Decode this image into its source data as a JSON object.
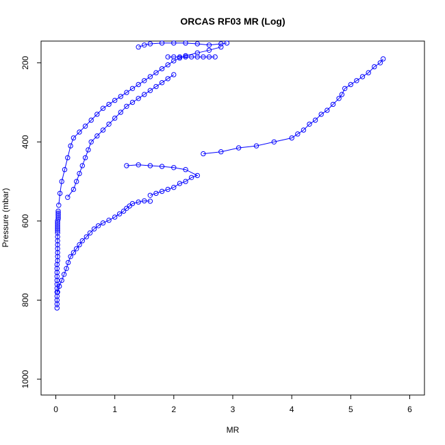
{
  "chart_data": {
    "type": "scatter",
    "title": "ORCAS RF03 MR (Log)",
    "xlabel": "MR",
    "ylabel": "Pressure (mbar)",
    "xlim": [
      -0.25,
      6.25
    ],
    "ylim": [
      1040,
      145
    ],
    "y_reversed": true,
    "grid": false,
    "legend": "none",
    "marker": "open-circle",
    "connected_by_line": true,
    "series_color": "#0000ff",
    "x_ticks": [
      0,
      1,
      2,
      3,
      4,
      5,
      6
    ],
    "x_tick_labels": [
      "0",
      "1",
      "2",
      "3",
      "4",
      "5",
      "6"
    ],
    "y_ticks": [
      200,
      400,
      600,
      800,
      1000
    ],
    "y_tick_labels": [
      "200",
      "400",
      "600",
      "800",
      "1000"
    ],
    "series": [
      {
        "segment": "surface-near-zero",
        "x": [
          0.02,
          0.02,
          0.02,
          0.02,
          0.02,
          0.02,
          0.02,
          0.02,
          0.02,
          0.02,
          0.02,
          0.02,
          0.03,
          0.03,
          0.03,
          0.03,
          0.03,
          0.03,
          0.03,
          0.03,
          0.03,
          0.03,
          0.03,
          0.03,
          0.03,
          0.03,
          0.04,
          0.04,
          0.04,
          0.04,
          0.04
        ],
        "y": [
          820,
          810,
          800,
          790,
          780,
          770,
          760,
          750,
          740,
          730,
          720,
          710,
          700,
          690,
          680,
          670,
          660,
          650,
          640,
          630,
          625,
          620,
          615,
          610,
          605,
          600,
          595,
          590,
          585,
          580,
          575
        ]
      },
      {
        "segment": "moist-layer-profile",
        "x": [
          0.03,
          0.06,
          0.1,
          0.14,
          0.18,
          0.21,
          0.25,
          0.3,
          0.35,
          0.4,
          0.45,
          0.52,
          0.58,
          0.65,
          0.72,
          0.8,
          0.9,
          1.0,
          1.08,
          1.15,
          1.2,
          1.25,
          1.3,
          1.4,
          1.5,
          1.6
        ],
        "y": [
          780,
          765,
          750,
          735,
          720,
          705,
          690,
          680,
          670,
          660,
          650,
          640,
          630,
          620,
          612,
          605,
          598,
          590,
          582,
          575,
          568,
          562,
          556,
          552,
          549,
          550
        ]
      },
      {
        "segment": "mid-level-branch",
        "x": [
          1.6,
          1.7,
          1.8,
          1.9,
          2.0,
          2.1,
          2.2,
          2.3,
          2.4,
          2.2,
          2.0,
          1.8,
          1.6,
          1.4,
          1.2
        ],
        "y": [
          535,
          530,
          525,
          520,
          515,
          505,
          500,
          490,
          485,
          470,
          465,
          462,
          460,
          458,
          460
        ]
      },
      {
        "segment": "upper-moist-branch",
        "x": [
          2.5,
          2.8,
          3.1,
          3.4,
          3.7,
          4.0,
          4.1,
          4.2,
          4.3,
          4.4,
          4.5,
          4.6,
          4.7,
          4.8,
          4.85,
          4.9,
          5.0,
          5.1,
          5.2,
          5.3,
          5.4,
          5.5,
          5.55
        ],
        "y": [
          430,
          425,
          415,
          410,
          400,
          390,
          380,
          370,
          355,
          345,
          330,
          320,
          305,
          290,
          280,
          265,
          255,
          245,
          235,
          225,
          210,
          200,
          190
        ]
      },
      {
        "segment": "main-core-column",
        "x": [
          0.05,
          0.07,
          0.1,
          0.15,
          0.2,
          0.25,
          0.3,
          0.4,
          0.5,
          0.6,
          0.7,
          0.8,
          0.9,
          1.0,
          1.1,
          1.2,
          1.3,
          1.4,
          1.5,
          1.6,
          1.7,
          1.8,
          1.9,
          2.0,
          2.1,
          2.2,
          2.4,
          2.6,
          2.8
        ],
        "y": [
          560,
          530,
          500,
          470,
          440,
          410,
          390,
          375,
          360,
          345,
          330,
          315,
          305,
          295,
          285,
          275,
          265,
          255,
          245,
          235,
          225,
          215,
          205,
          195,
          188,
          182,
          175,
          168,
          160
        ]
      },
      {
        "segment": "secondary-core-column",
        "x": [
          0.2,
          0.3,
          0.35,
          0.4,
          0.45,
          0.5,
          0.55,
          0.6,
          0.7,
          0.8,
          0.9,
          1.0,
          1.1,
          1.2,
          1.3,
          1.4,
          1.5,
          1.6,
          1.7,
          1.8,
          1.9,
          2.0
        ],
        "y": [
          540,
          520,
          500,
          480,
          460,
          440,
          420,
          400,
          385,
          370,
          355,
          340,
          325,
          310,
          300,
          290,
          280,
          270,
          260,
          250,
          240,
          230
        ]
      },
      {
        "segment": "horizontal-band-185",
        "x": [
          1.9,
          2.0,
          2.1,
          2.2,
          2.3,
          2.4,
          2.5,
          2.6,
          2.7
        ],
        "y": [
          185,
          185,
          185,
          185,
          185,
          185,
          185,
          185,
          185
        ]
      },
      {
        "segment": "top-spread",
        "x": [
          1.4,
          1.5,
          1.6,
          1.8,
          2.0,
          2.2,
          2.4,
          2.6,
          2.8,
          2.9
        ],
        "y": [
          160,
          155,
          152,
          150,
          150,
          150,
          152,
          155,
          152,
          150
        ]
      }
    ]
  }
}
